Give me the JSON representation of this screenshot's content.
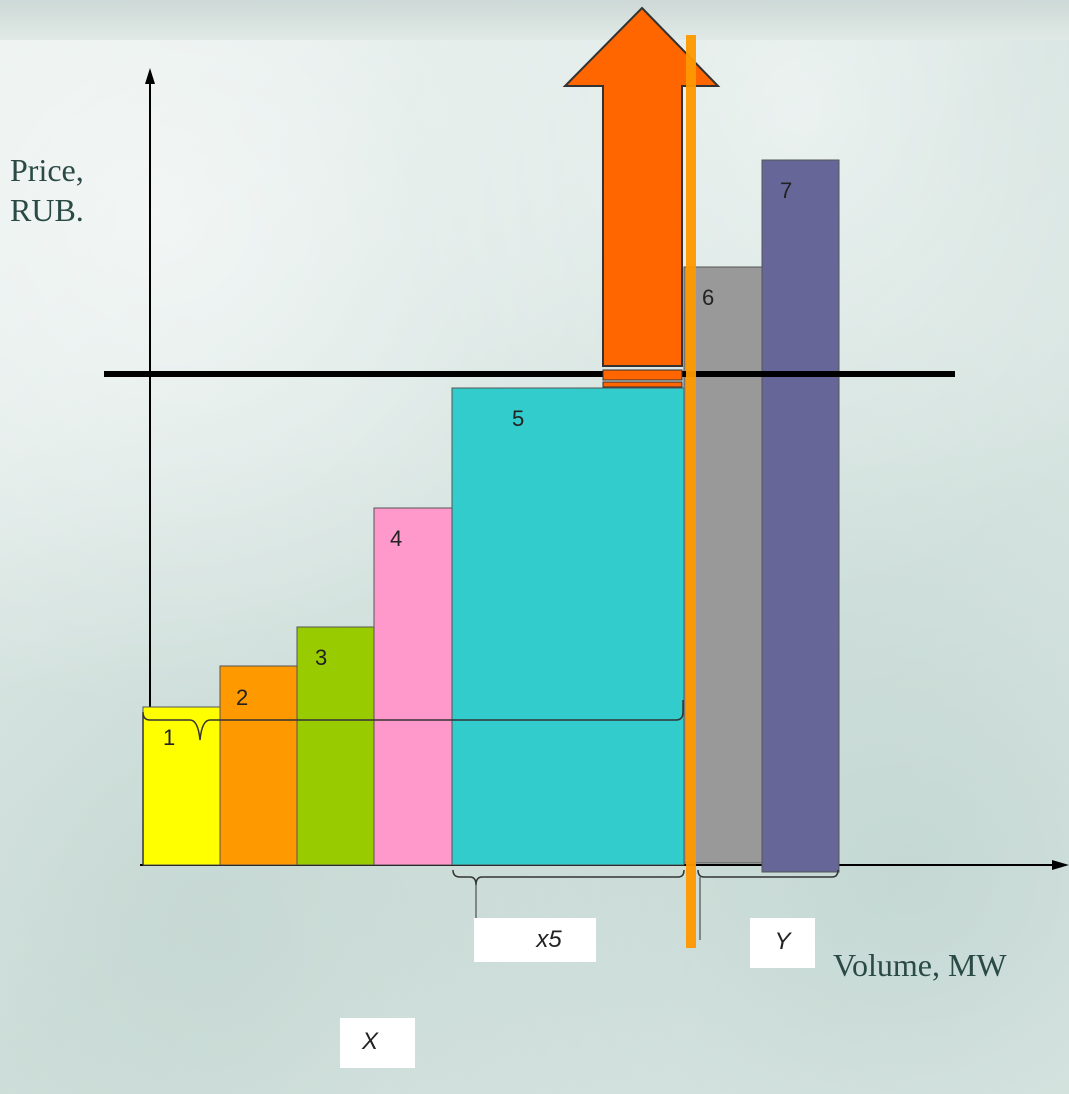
{
  "axes": {
    "y_label_line1": "Price,",
    "y_label_line2": "RUB.",
    "x_label": "Volume, MW"
  },
  "bars": [
    {
      "label": "1",
      "color": "#ffff00"
    },
    {
      "label": "2",
      "color": "#ff9900"
    },
    {
      "label": "3",
      "color": "#99cc00"
    },
    {
      "label": "4",
      "color": "#ff99cc"
    },
    {
      "label": "5",
      "color": "#33cccc"
    },
    {
      "label": "6",
      "color": "#999999"
    },
    {
      "label": "7",
      "color": "#666699"
    }
  ],
  "braces": {
    "x5_label": "x5",
    "y_label": "Y",
    "x_label": "X"
  },
  "colors": {
    "arrow": "#ff6600",
    "cutoff_line": "#ff9900",
    "price_line": "#000000"
  }
}
